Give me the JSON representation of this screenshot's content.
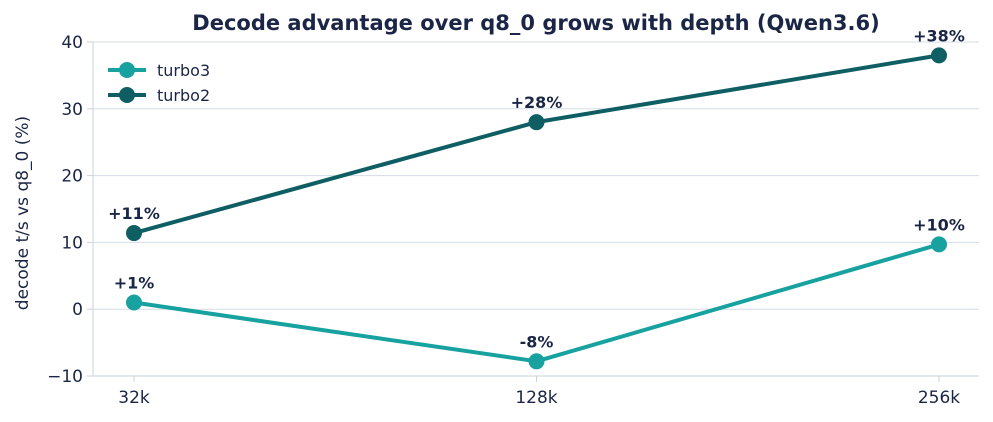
{
  "chart_data": {
    "type": "line",
    "title": "Decode advantage over q8_0 grows with depth (Qwen3.6)",
    "xlabel": "",
    "ylabel": "decode t/s vs q8_0 (%)",
    "categories": [
      "32k",
      "128k",
      "256k"
    ],
    "ylim": [
      -10,
      40
    ],
    "yticks": [
      -10,
      0,
      10,
      20,
      30,
      40
    ],
    "ytick_labels": [
      "−10",
      "0",
      "10",
      "20",
      "30",
      "40"
    ],
    "grid": "horizontal",
    "legend_position": "top-left",
    "series": [
      {
        "name": "turbo3",
        "color": "#17a2a0",
        "values": [
          1.0,
          -7.8,
          9.7
        ],
        "labels": [
          "+1%",
          "-8%",
          "+10%"
        ]
      },
      {
        "name": "turbo2",
        "color": "#0e5e63",
        "values": [
          11.4,
          28.0,
          38.0
        ],
        "labels": [
          "+11%",
          "+28%",
          "+38%"
        ]
      }
    ]
  }
}
